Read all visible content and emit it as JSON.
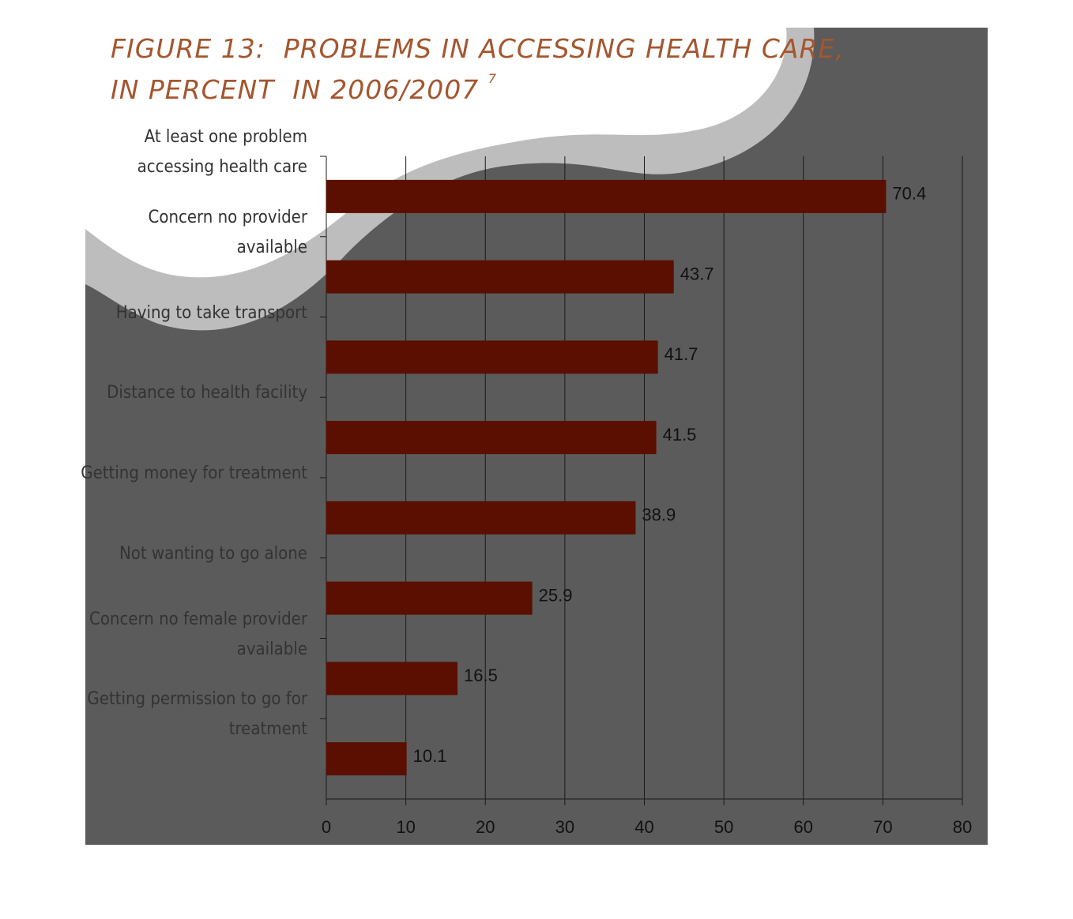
{
  "chart_data": {
    "type": "bar",
    "orientation": "horizontal",
    "title": [
      "FIGURE 13:  PROBLEMS IN ACCESSING HEALTH CARE,",
      "IN PERCENT  IN 2006/2007"
    ],
    "title_footnote": "7",
    "categories": [
      "At least one problem accessing health care",
      "Concern no provider available",
      "Having to take transport",
      "Distance to health facility",
      "Getting money for treatment",
      "Not wanting to go alone",
      "Concern no female provider available",
      "Getting permission to go for treatment"
    ],
    "values": [
      70.4,
      43.7,
      41.7,
      41.5,
      38.9,
      25.9,
      16.5,
      10.1
    ],
    "color": "#5a0f00",
    "xlim": [
      0,
      80
    ],
    "xticks": [
      0,
      10,
      20,
      30,
      40,
      50,
      60,
      70,
      80
    ],
    "grid": true
  }
}
